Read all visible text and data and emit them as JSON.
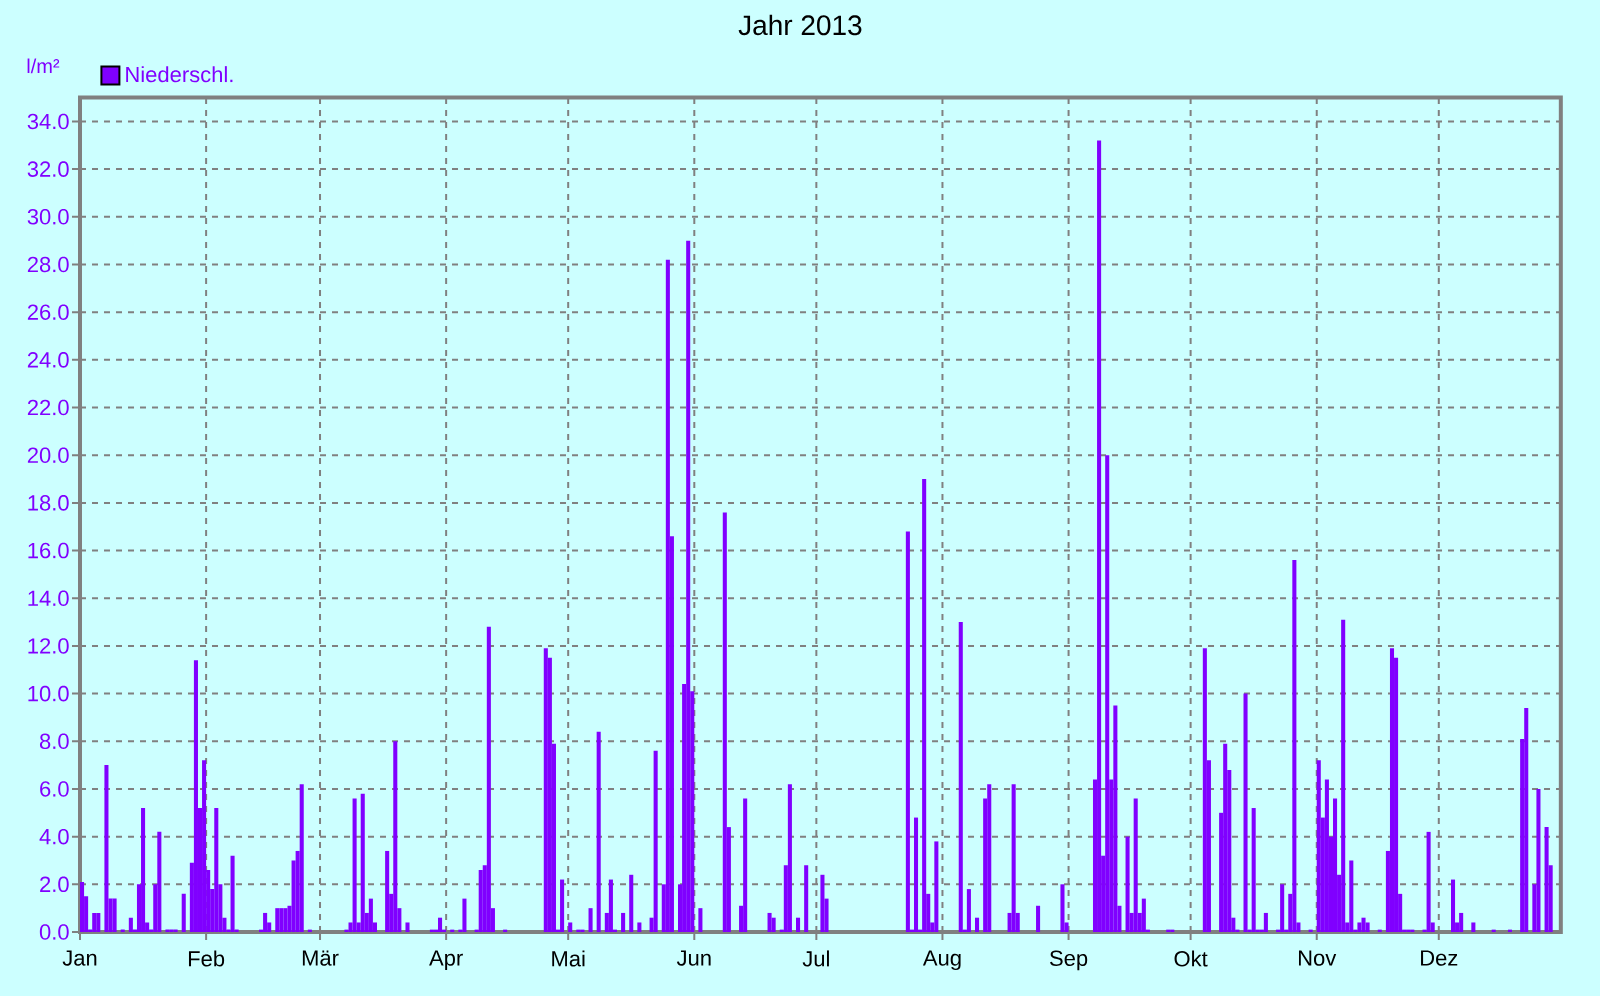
{
  "chart_data": {
    "type": "bar",
    "title": "Jahr 2013",
    "ylabel": "l/m²",
    "x": [
      "2013-01-01",
      "2013-01-02",
      "2013-01-03",
      "2013-01-04",
      "2013-01-05",
      "2013-01-07",
      "2013-01-08",
      "2013-01-09",
      "2013-01-11",
      "2013-01-13",
      "2013-01-14",
      "2013-01-15",
      "2013-01-16",
      "2013-01-17",
      "2013-01-18",
      "2013-01-19",
      "2013-01-20",
      "2013-01-22",
      "2013-01-23",
      "2013-01-24",
      "2013-01-26",
      "2013-01-28",
      "2013-01-29",
      "2013-01-30",
      "2013-01-31",
      "2013-02-01",
      "2013-02-02",
      "2013-02-03",
      "2013-02-04",
      "2013-02-05",
      "2013-02-06",
      "2013-02-07",
      "2013-02-08",
      "2013-02-14",
      "2013-02-15",
      "2013-02-16",
      "2013-02-18",
      "2013-02-19",
      "2013-02-20",
      "2013-02-21",
      "2013-02-22",
      "2013-02-23",
      "2013-02-24",
      "2013-02-26",
      "2013-03-07",
      "2013-03-08",
      "2013-03-09",
      "2013-03-10",
      "2013-03-11",
      "2013-03-12",
      "2013-03-13",
      "2013-03-14",
      "2013-03-17",
      "2013-03-18",
      "2013-03-19",
      "2013-03-20",
      "2013-03-22",
      "2013-03-28",
      "2013-03-29",
      "2013-03-30",
      "2013-03-31",
      "2013-04-02",
      "2013-04-04",
      "2013-04-05",
      "2013-04-08",
      "2013-04-09",
      "2013-04-10",
      "2013-04-11",
      "2013-04-12",
      "2013-04-15",
      "2013-04-25",
      "2013-04-26",
      "2013-04-27",
      "2013-04-28",
      "2013-04-29",
      "2013-05-01",
      "2013-05-03",
      "2013-05-04",
      "2013-05-06",
      "2013-05-08",
      "2013-05-10",
      "2013-05-11",
      "2013-05-12",
      "2013-05-14",
      "2013-05-16",
      "2013-05-18",
      "2013-05-21",
      "2013-05-22",
      "2013-05-24",
      "2013-05-25",
      "2013-05-26",
      "2013-05-28",
      "2013-05-29",
      "2013-05-30",
      "2013-05-31",
      "2013-06-02",
      "2013-06-08",
      "2013-06-09",
      "2013-06-12",
      "2013-06-13",
      "2013-06-19",
      "2013-06-20",
      "2013-06-22",
      "2013-06-23",
      "2013-06-24",
      "2013-06-26",
      "2013-06-28",
      "2013-07-02",
      "2013-07-03",
      "2013-07-23",
      "2013-07-24",
      "2013-07-25",
      "2013-07-26",
      "2013-07-27",
      "2013-07-28",
      "2013-07-29",
      "2013-07-30",
      "2013-08-05",
      "2013-08-06",
      "2013-08-07",
      "2013-08-09",
      "2013-08-11",
      "2013-08-12",
      "2013-08-17",
      "2013-08-18",
      "2013-08-19",
      "2013-08-24",
      "2013-08-30",
      "2013-08-31",
      "2013-09-07",
      "2013-09-08",
      "2013-09-09",
      "2013-09-10",
      "2013-09-11",
      "2013-09-12",
      "2013-09-13",
      "2013-09-15",
      "2013-09-16",
      "2013-09-17",
      "2013-09-18",
      "2013-09-19",
      "2013-09-20",
      "2013-09-25",
      "2013-09-26",
      "2013-10-04",
      "2013-10-05",
      "2013-10-08",
      "2013-10-09",
      "2013-10-10",
      "2013-10-11",
      "2013-10-12",
      "2013-10-14",
      "2013-10-15",
      "2013-10-16",
      "2013-10-17",
      "2013-10-18",
      "2013-10-19",
      "2013-10-22",
      "2013-10-23",
      "2013-10-24",
      "2013-10-25",
      "2013-10-26",
      "2013-10-27",
      "2013-10-30",
      "2013-11-01",
      "2013-11-02",
      "2013-11-03",
      "2013-11-04",
      "2013-11-05",
      "2013-11-06",
      "2013-11-07",
      "2013-11-08",
      "2013-11-09",
      "2013-11-10",
      "2013-11-11",
      "2013-11-12",
      "2013-11-13",
      "2013-11-16",
      "2013-11-18",
      "2013-11-19",
      "2013-11-20",
      "2013-11-21",
      "2013-11-22",
      "2013-11-23",
      "2013-11-24",
      "2013-11-27",
      "2013-11-28",
      "2013-11-29",
      "2013-12-04",
      "2013-12-05",
      "2013-12-06",
      "2013-12-09",
      "2013-12-14",
      "2013-12-18",
      "2013-12-21",
      "2013-12-22",
      "2013-12-24",
      "2013-12-25",
      "2013-12-27",
      "2013-12-28"
    ],
    "series": [
      {
        "name": "Niederschl.",
        "color": "#8000ff",
        "values": [
          2.1,
          1.5,
          0.1,
          0.8,
          0.8,
          7.0,
          1.4,
          1.4,
          0.1,
          0.6,
          0.1,
          2.0,
          5.2,
          0.4,
          0.1,
          2.0,
          4.2,
          0.1,
          0.1,
          0.1,
          1.6,
          2.9,
          11.4,
          5.2,
          7.2,
          2.6,
          1.8,
          5.2,
          2.0,
          0.6,
          0.1,
          3.2,
          0.1,
          0.1,
          0.8,
          0.4,
          1.0,
          1.0,
          1.0,
          1.1,
          3.0,
          3.4,
          6.2,
          0.1,
          0.1,
          0.4,
          5.6,
          0.4,
          5.8,
          0.8,
          1.4,
          0.4,
          3.4,
          1.6,
          8.0,
          1.0,
          0.4,
          0.1,
          0.1,
          0.6,
          0.1,
          0.1,
          0.1,
          1.4,
          0.1,
          2.6,
          2.8,
          12.8,
          1.0,
          0.1,
          11.9,
          11.5,
          7.9,
          0.1,
          2.2,
          0.4,
          0.1,
          0.1,
          1.0,
          8.4,
          0.8,
          2.2,
          0.1,
          0.8,
          2.4,
          0.4,
          0.6,
          7.6,
          2.0,
          28.2,
          16.6,
          2.0,
          10.4,
          29.0,
          10.1,
          1.0,
          17.6,
          4.4,
          1.1,
          5.6,
          0.8,
          0.6,
          0.1,
          2.8,
          6.2,
          0.6,
          2.8,
          2.4,
          1.4,
          16.8,
          0.1,
          4.8,
          0.1,
          19.0,
          1.6,
          0.4,
          3.8,
          13.0,
          0.1,
          1.8,
          0.6,
          5.6,
          6.2,
          0.8,
          6.2,
          0.8,
          1.1,
          2.0,
          0.4,
          6.4,
          33.2,
          3.2,
          20.0,
          6.4,
          9.5,
          1.1,
          4.0,
          0.8,
          5.6,
          0.8,
          1.4,
          0.1,
          0.1,
          0.1,
          11.9,
          7.2,
          5.0,
          7.9,
          6.8,
          0.6,
          0.1,
          10.0,
          0.1,
          5.2,
          0.1,
          0.1,
          0.8,
          0.1,
          2.0,
          0.1,
          1.6,
          15.6,
          0.4,
          0.1,
          7.2,
          4.8,
          6.4,
          4.0,
          5.6,
          2.4,
          13.1,
          0.4,
          3.0,
          0.1,
          0.4,
          0.6,
          0.4,
          0.1,
          3.4,
          11.9,
          11.5,
          1.6,
          0.1,
          0.1,
          0.1,
          0.1,
          4.2,
          0.4,
          2.2,
          0.4,
          0.8,
          0.4,
          0.1,
          0.1,
          8.1,
          9.4,
          2.0,
          6.0,
          4.4,
          2.8
        ]
      }
    ],
    "xlim": [
      "2013-01-01",
      "2013-12-31"
    ],
    "xticks": [
      {
        "value": "2013-01-01",
        "label": "Jan"
      },
      {
        "value": "2013-02-01",
        "label": "Feb"
      },
      {
        "value": "2013-03-01",
        "label": "Mär"
      },
      {
        "value": "2013-04-01",
        "label": "Apr"
      },
      {
        "value": "2013-05-01",
        "label": "Mai"
      },
      {
        "value": "2013-06-01",
        "label": "Jun"
      },
      {
        "value": "2013-07-01",
        "label": "Jul"
      },
      {
        "value": "2013-08-01",
        "label": "Aug"
      },
      {
        "value": "2013-09-01",
        "label": "Sep"
      },
      {
        "value": "2013-10-01",
        "label": "Okt"
      },
      {
        "value": "2013-11-01",
        "label": "Nov"
      },
      {
        "value": "2013-12-01",
        "label": "Dez"
      }
    ],
    "ylim": [
      0,
      35
    ],
    "yticks": [
      {
        "value": 0,
        "label": "0.0"
      },
      {
        "value": 2,
        "label": "2.0"
      },
      {
        "value": 4,
        "label": "4.0"
      },
      {
        "value": 6,
        "label": "6.0"
      },
      {
        "value": 8,
        "label": "8.0"
      },
      {
        "value": 10,
        "label": "10.0"
      },
      {
        "value": 12,
        "label": "12.0"
      },
      {
        "value": 14,
        "label": "14.0"
      },
      {
        "value": 16,
        "label": "16.0"
      },
      {
        "value": 18,
        "label": "18.0"
      },
      {
        "value": 20,
        "label": "20.0"
      },
      {
        "value": 22,
        "label": "22.0"
      },
      {
        "value": 24,
        "label": "24.0"
      },
      {
        "value": 26,
        "label": "26.0"
      },
      {
        "value": 28,
        "label": "28.0"
      },
      {
        "value": 30,
        "label": "30.0"
      },
      {
        "value": 32,
        "label": "32.0"
      },
      {
        "value": 34,
        "label": "34.0"
      }
    ],
    "grid": true,
    "legend": "top left"
  }
}
